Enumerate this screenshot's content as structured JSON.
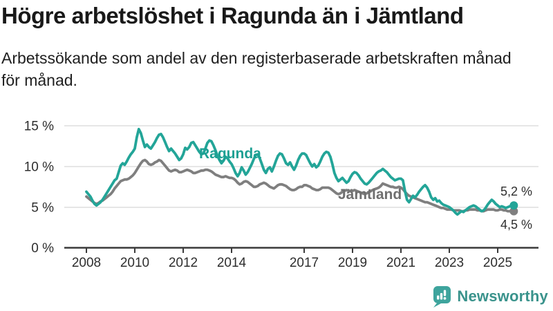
{
  "title": "Högre arbetslöshet i Ragunda än i Jämtland",
  "subtitle": "Arbetssökande som andel av den registerbaserade arbetskraften månad\nför månad.",
  "branding": {
    "name": "Newsworthy",
    "icon": "newsworthy-speech-bubble-chart-icon",
    "brand_color": "#3ea49d",
    "text_color": "#3a938c"
  },
  "chart_data": {
    "type": "line",
    "title": "Högre arbetslöshet i Ragunda än i Jämtland",
    "subtitle": "Arbetssökande som andel av den registerbaserade arbetskraften månad för månad.",
    "unit": "%",
    "frequency": "monthly",
    "x_start": "2008-01",
    "x_end": "2025-09",
    "grid": "horizontal",
    "ylim": [
      0,
      15
    ],
    "y_tick_labels_top_down": [
      "15 %",
      "10 %",
      "5 %",
      "0 %"
    ],
    "x_tick_years": [
      2008,
      2010,
      2012,
      2014,
      2017,
      2019,
      2021,
      2023,
      2025
    ],
    "colors": {
      "grid": "#dddddd",
      "axis": "#3a3a3a",
      "axis_text": "#2e2e2e"
    },
    "series": [
      {
        "name": "Ragunda",
        "color": "#23a598",
        "end_value": 5.2,
        "end_label": "5,2 %",
        "values": [
          6.9,
          6.6,
          6.3,
          5.8,
          5.4,
          5.2,
          5.4,
          5.6,
          5.9,
          6.3,
          6.7,
          7.1,
          7.5,
          7.9,
          8.3,
          8.5,
          9.3,
          10.1,
          10.4,
          10.2,
          10.6,
          11.1,
          11.5,
          11.8,
          12.2,
          13.6,
          14.6,
          14.1,
          13.2,
          12.4,
          12.7,
          12.4,
          12.2,
          12.6,
          13.0,
          13.5,
          13.9,
          14.0,
          13.6,
          13.0,
          12.4,
          11.9,
          12.2,
          11.9,
          11.6,
          11.2,
          10.8,
          11.0,
          11.5,
          12.3,
          12.1,
          12.4,
          12.9,
          13.0,
          12.6,
          12.2,
          11.8,
          11.5,
          11.6,
          12.2,
          12.9,
          13.2,
          13.1,
          12.6,
          12.0,
          11.3,
          10.8,
          10.4,
          10.7,
          11.2,
          11.0,
          10.6,
          10.3,
          9.8,
          9.2,
          8.8,
          9.2,
          9.9,
          9.5,
          9.0,
          9.3,
          9.8,
          10.3,
          10.9,
          11.4,
          11.5,
          11.0,
          10.3,
          9.6,
          9.2,
          9.7,
          9.9,
          9.4,
          10.0,
          10.7,
          11.3,
          11.6,
          11.5,
          11.0,
          10.4,
          10.2,
          10.5,
          10.0,
          9.6,
          10.1,
          10.8,
          11.3,
          11.6,
          11.6,
          11.4,
          10.9,
          10.4,
          10.0,
          10.3,
          9.9,
          10.1,
          10.6,
          11.2,
          11.6,
          11.8,
          11.7,
          11.2,
          10.3,
          9.2,
          8.6,
          8.2,
          8.4,
          8.6,
          8.3,
          8.0,
          8.2,
          8.7,
          9.1,
          9.3,
          9.2,
          8.9,
          8.5,
          8.2,
          7.9,
          7.8,
          8.0,
          8.3,
          8.6,
          8.9,
          9.2,
          9.4,
          9.5,
          9.7,
          9.5,
          9.3,
          9.0,
          8.7,
          8.5,
          8.3,
          8.4,
          8.5,
          8.5,
          8.3,
          7.0,
          5.9,
          5.6,
          6.0,
          6.4,
          6.2,
          6.5,
          6.9,
          7.2,
          7.5,
          7.7,
          7.4,
          6.9,
          6.2,
          5.9,
          6.1,
          5.7,
          5.8,
          5.5,
          5.3,
          5.2,
          5.1,
          5.0,
          4.8,
          4.6,
          4.3,
          4.1,
          4.3,
          4.5,
          4.4,
          4.6,
          4.8,
          5.0,
          5.1,
          5.2,
          5.1,
          4.9,
          4.7,
          4.5,
          4.6,
          4.9,
          5.3,
          5.6,
          5.9,
          5.7,
          5.4,
          5.2,
          5.0,
          5.1,
          5.0,
          4.9,
          5.0,
          5.1,
          5.2,
          5.2
        ]
      },
      {
        "name": "Jämtland",
        "color": "#7f7f7f",
        "end_value": 4.5,
        "end_label": "4,5 %",
        "values": [
          6.3,
          6.1,
          5.9,
          5.7,
          5.5,
          5.4,
          5.5,
          5.7,
          5.8,
          6.0,
          6.2,
          6.4,
          6.6,
          6.9,
          7.3,
          7.6,
          7.9,
          8.2,
          8.3,
          8.4,
          8.4,
          8.5,
          8.7,
          8.9,
          9.2,
          9.6,
          10.0,
          10.4,
          10.7,
          10.8,
          10.6,
          10.3,
          10.2,
          10.3,
          10.5,
          10.6,
          10.8,
          10.7,
          10.4,
          10.1,
          9.8,
          9.5,
          9.4,
          9.5,
          9.6,
          9.5,
          9.3,
          9.3,
          9.4,
          9.5,
          9.6,
          9.5,
          9.4,
          9.2,
          9.2,
          9.3,
          9.4,
          9.5,
          9.5,
          9.6,
          9.6,
          9.5,
          9.4,
          9.2,
          9.0,
          8.9,
          8.8,
          8.7,
          8.7,
          8.8,
          8.7,
          8.6,
          8.6,
          8.5,
          8.3,
          8.0,
          7.8,
          7.9,
          8.1,
          8.2,
          8.1,
          7.9,
          7.7,
          7.5,
          7.5,
          7.6,
          7.8,
          7.9,
          8.0,
          7.9,
          7.7,
          7.5,
          7.4,
          7.3,
          7.5,
          7.7,
          7.8,
          7.8,
          7.7,
          7.6,
          7.4,
          7.2,
          7.1,
          7.1,
          7.2,
          7.4,
          7.5,
          7.5,
          7.7,
          7.7,
          7.6,
          7.5,
          7.3,
          7.2,
          7.1,
          7.1,
          7.2,
          7.4,
          7.4,
          7.4,
          7.4,
          7.3,
          7.1,
          6.9,
          6.7,
          6.6,
          6.7,
          6.9,
          7.0,
          7.1,
          7.0,
          7.0,
          7.0,
          7.1,
          7.0,
          6.9,
          6.8,
          6.7,
          6.6,
          6.7,
          6.8,
          7.0,
          7.1,
          7.2,
          7.3,
          7.4,
          7.6,
          7.9,
          7.8,
          7.7,
          7.6,
          7.5,
          7.5,
          7.4,
          7.4,
          7.5,
          7.4,
          7.2,
          6.9,
          6.6,
          6.4,
          6.3,
          6.2,
          6.1,
          6.0,
          5.9,
          5.8,
          5.7,
          5.6,
          5.6,
          5.5,
          5.4,
          5.3,
          5.2,
          5.1,
          5.0,
          4.9,
          4.9,
          4.8,
          4.7,
          4.7,
          4.7,
          4.6,
          4.6,
          4.6,
          4.6,
          4.5,
          4.5,
          4.6,
          4.6,
          4.7,
          4.7,
          4.7,
          4.7,
          4.6,
          4.6,
          4.5,
          4.5,
          4.6,
          4.7,
          4.7,
          4.7,
          4.7,
          4.6,
          4.6,
          4.7,
          4.7,
          4.6,
          4.6,
          4.5,
          4.5,
          4.5,
          4.5
        ]
      }
    ]
  }
}
